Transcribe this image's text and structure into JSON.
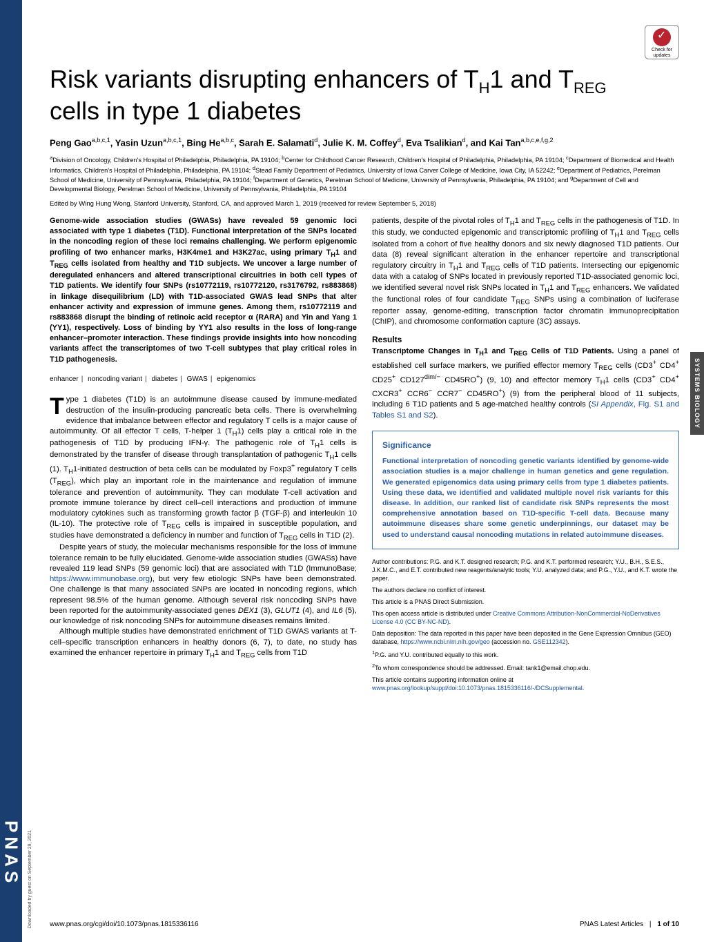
{
  "spine": "PNAS",
  "download_note": "Downloaded by guest on September 29, 2021",
  "side_tag": "SYSTEMS BIOLOGY",
  "check_updates": {
    "line1": "Check for",
    "line2": "updates"
  },
  "title_html": "Risk variants disrupting enhancers of T<sub>H</sub>1 and T<sub>REG</sub> cells in type 1 diabetes",
  "authors_html": "Peng Gao<sup>a,b,c,1</sup>, Yasin Uzun<sup>a,b,c,1</sup>, Bing He<sup>a,b,c</sup>, Sarah E. Salamati<sup>d</sup>, Julie K. M. Coffey<sup>d</sup>, Eva Tsalikian<sup>d</sup>, and Kai Tan<sup>a,b,c,e,f,g,2</sup>",
  "affiliations_html": "<sup>a</sup>Division of Oncology, Children's Hospital of Philadelphia, Philadelphia, PA 19104; <sup>b</sup>Center for Childhood Cancer Research, Children's Hospital of Philadelphia, Philadelphia, PA 19104; <sup>c</sup>Department of Biomedical and Health Informatics, Children's Hospital of Philadelphia, Philadelphia, PA 19104; <sup>d</sup>Stead Family Department of Pediatrics, University of Iowa Carver College of Medicine, Iowa City, IA 52242; <sup>e</sup>Department of Pediatrics, Perelman School of Medicine, University of Pennsylvania, Philadelphia, PA 19104; <sup>f</sup>Department of Genetics, Perelman School of Medicine, University of Pennsylvania, Philadelphia, PA 19104; and <sup>g</sup>Department of Cell and Developmental Biology, Perelman School of Medicine, University of Pennsylvania, Philadelphia, PA 19104",
  "edited": "Edited by Wing Hung Wong, Stanford University, Stanford, CA, and approved March 1, 2019 (received for review September 5, 2018)",
  "abstract_html": "Genome-wide association studies (GWASs) have revealed 59 genomic loci associated with type 1 diabetes (T1D). Functional interpretation of the SNPs located in the noncoding region of these loci remains challenging. We perform epigenomic profiling of two enhancer marks, H3K4me1 and H3K27ac, using primary T<sub>H</sub>1 and T<sub>REG</sub> cells isolated from healthy and T1D subjects. We uncover a large number of deregulated enhancers and altered transcriptional circuitries in both cell types of T1D patients. We identify four SNPs (rs10772119, rs10772120, rs3176792, rs883868) in linkage disequilibrium (LD) with T1D-associated GWAS lead SNPs that alter enhancer activity and expression of immune genes. Among them, rs10772119 and rs883868 disrupt the binding of retinoic acid receptor α (RARA) and Yin and Yang 1 (YY1), respectively. Loss of binding by YY1 also results in the loss of long-range enhancer–promoter interaction. These findings provide insights into how noncoding variants affect the transcriptomes of two T-cell subtypes that play critical roles in T1D pathogenesis.",
  "keywords": [
    "enhancer",
    "noncoding variant",
    "diabetes",
    "GWAS",
    "epigenomics"
  ],
  "body_left_p1_html": "ype 1 diabetes (T1D) is an autoimmune disease caused by immune-mediated destruction of the insulin-producing pancreatic beta cells. There is overwhelming evidence that imbalance between effector and regulatory T cells is a major cause of autoimmunity. Of all effector T cells, T-helper 1 (T<sub>H</sub>1) cells play a critical role in the pathogenesis of T1D by producing IFN-γ. The pathogenic role of T<sub>H</sub>1 cells is demonstrated by the transfer of disease through transplantation of pathogenic T<sub>H</sub>1 cells (1). T<sub>H</sub>1-initiated destruction of beta cells can be modulated by Foxp3<sup>+</sup> regulatory T cells (T<sub>REG</sub>), which play an important role in the maintenance and regulation of immune tolerance and prevention of autoimmunity. They can modulate T-cell activation and promote immune tolerance by direct cell–cell interactions and production of immune modulatory cytokines such as transforming growth factor β (TGF-β) and interleukin 10 (IL-10). The protective role of T<sub>REG</sub> cells is impaired in susceptible population, and studies have demonstrated a deficiency in number and function of T<sub>REG</sub> cells in T1D (2).",
  "body_left_p2_html": "Despite years of study, the molecular mechanisms responsible for the loss of immune tolerance remain to be fully elucidated. Genome-wide association studies (GWASs) have revealed 119 lead SNPs (59 genomic loci) that are associated with T1D (ImmunoBase; <span class=\"link\">https://www.immunobase.org</span>), but very few etiologic SNPs have been demonstrated. One challenge is that many associated SNPs are located in noncoding regions, which represent 98.5% of the human genome. Although several risk noncoding SNPs have been reported for the autoimmunity-associated genes <i>DEX1</i> (3), <i>GLUT1</i> (4), and <i>IL6</i> (5), our knowledge of risk noncoding SNPs for autoimmune diseases remains limited.",
  "body_left_p3_html": "Although multiple studies have demonstrated enrichment of T1D GWAS variants at T-cell–specific transcription enhancers in healthy donors (6, 7), to date, no study has examined the enhancer repertoire in primary T<sub>H</sub>1 and T<sub>REG</sub> cells from T1D",
  "body_right_intro_html": "patients, despite of the pivotal roles of T<sub>H</sub>1 and T<sub>REG</sub> cells in the pathogenesis of T1D. In this study, we conducted epigenomic and transcriptomic profiling of T<sub>H</sub>1 and T<sub>REG</sub> cells isolated from a cohort of five healthy donors and six newly diagnosed T1D patients. Our data (8) reveal significant alteration in the enhancer repertoire and transcriptional regulatory circuitry in T<sub>H</sub>1 and T<sub>REG</sub> cells of T1D patients. Intersecting our epigenomic data with a catalog of SNPs located in previously reported T1D-associated genomic loci, we identified several novel risk SNPs located in T<sub>H</sub>1 and T<sub>REG</sub> enhancers. We validated the functional roles of four candidate T<sub>REG</sub> SNPs using a combination of luciferase reporter assay, genome-editing, transcription factor chromatin immunoprecipitation (ChIP), and chromosome conformation capture (3C) assays.",
  "results_heading": "Results",
  "results_sub_html": "<span class=\"subhead\">Transcriptome Changes in T<sub>H</sub>1 and T<sub>REG</sub> Cells of T1D Patients.</span> Using a panel of established cell surface markers, we purified effector memory T<sub>REG</sub> cells (CD3<sup>+</sup> CD4<sup>+</sup> CD25<sup>+</sup> CD127<sup>dim/−</sup> CD45RO<sup>+</sup>) (9, 10) and effector memory T<sub>H</sub>1 cells (CD3<sup>+</sup> CD4<sup>+</sup> CXCR3<sup>+</sup> CCR6<sup>−</sup> CCR7<sup>−</sup> CD45RO<sup>+</sup>) (9) from the peripheral blood of 11 subjects, including 6 T1D patients and 5 age-matched healthy controls (<span class=\"link\"><i>SI Appendix</i>, Fig. S1 and Tables S1 and S2</span>).",
  "significance": {
    "title": "Significance",
    "body": "Functional interpretation of noncoding genetic variants identified by genome-wide association studies is a major challenge in human genetics and gene regulation. We generated epigenomics data using primary cells from type 1 diabetes patients. Using these data, we identified and validated multiple novel risk variants for this disease. In addition, our ranked list of candidate risk SNPs represents the most comprehensive annotation based on T1D-specific T-cell data. Because many autoimmune diseases share some genetic underpinnings, our dataset may be used to understand causal noncoding mutations in related autoimmune diseases."
  },
  "notes": [
    "Author contributions: P.G. and K.T. designed research; P.G. and K.T. performed research; Y.U., B.H., S.E.S., J.K.M.C., and E.T. contributed new reagents/analytic tools; Y.U. analyzed data; and P.G., Y.U., and K.T. wrote the paper.",
    "The authors declare no conflict of interest.",
    "This article is a PNAS Direct Submission.",
    "This open access article is distributed under <span class=\"link\">Creative Commons Attribution-NonCommercial-NoDerivatives License 4.0 (CC BY-NC-ND)</span>.",
    "Data deposition: The data reported in this paper have been deposited in the Gene Expression Omnibus (GEO) database, <span class=\"link\">https://www.ncbi.nlm.nih.gov/geo</span> (accession no. <span class=\"link\">GSE112342</span>).",
    "<sup>1</sup>P.G. and Y.U. contributed equally to this work.",
    "<sup>2</sup>To whom correspondence should be addressed. Email: tank1@email.chop.edu.",
    "This article contains supporting information online at <span class=\"link\">www.pnas.org/lookup/suppl/doi:10.1073/pnas.1815336116/-/DCSupplemental</span>."
  ],
  "footer": {
    "left": "www.pnas.org/cgi/doi/10.1073/pnas.1815336116",
    "right_label": "PNAS Latest Articles",
    "right_page": "1 of 10"
  },
  "colors": {
    "spine_bg": "#1a3e6f",
    "link": "#1a4fa3",
    "sig_border": "#3b6fb5",
    "sig_text": "#2a5ca8",
    "side_tag_bg": "#4a4a4a",
    "check_circle": "#b8232f"
  }
}
